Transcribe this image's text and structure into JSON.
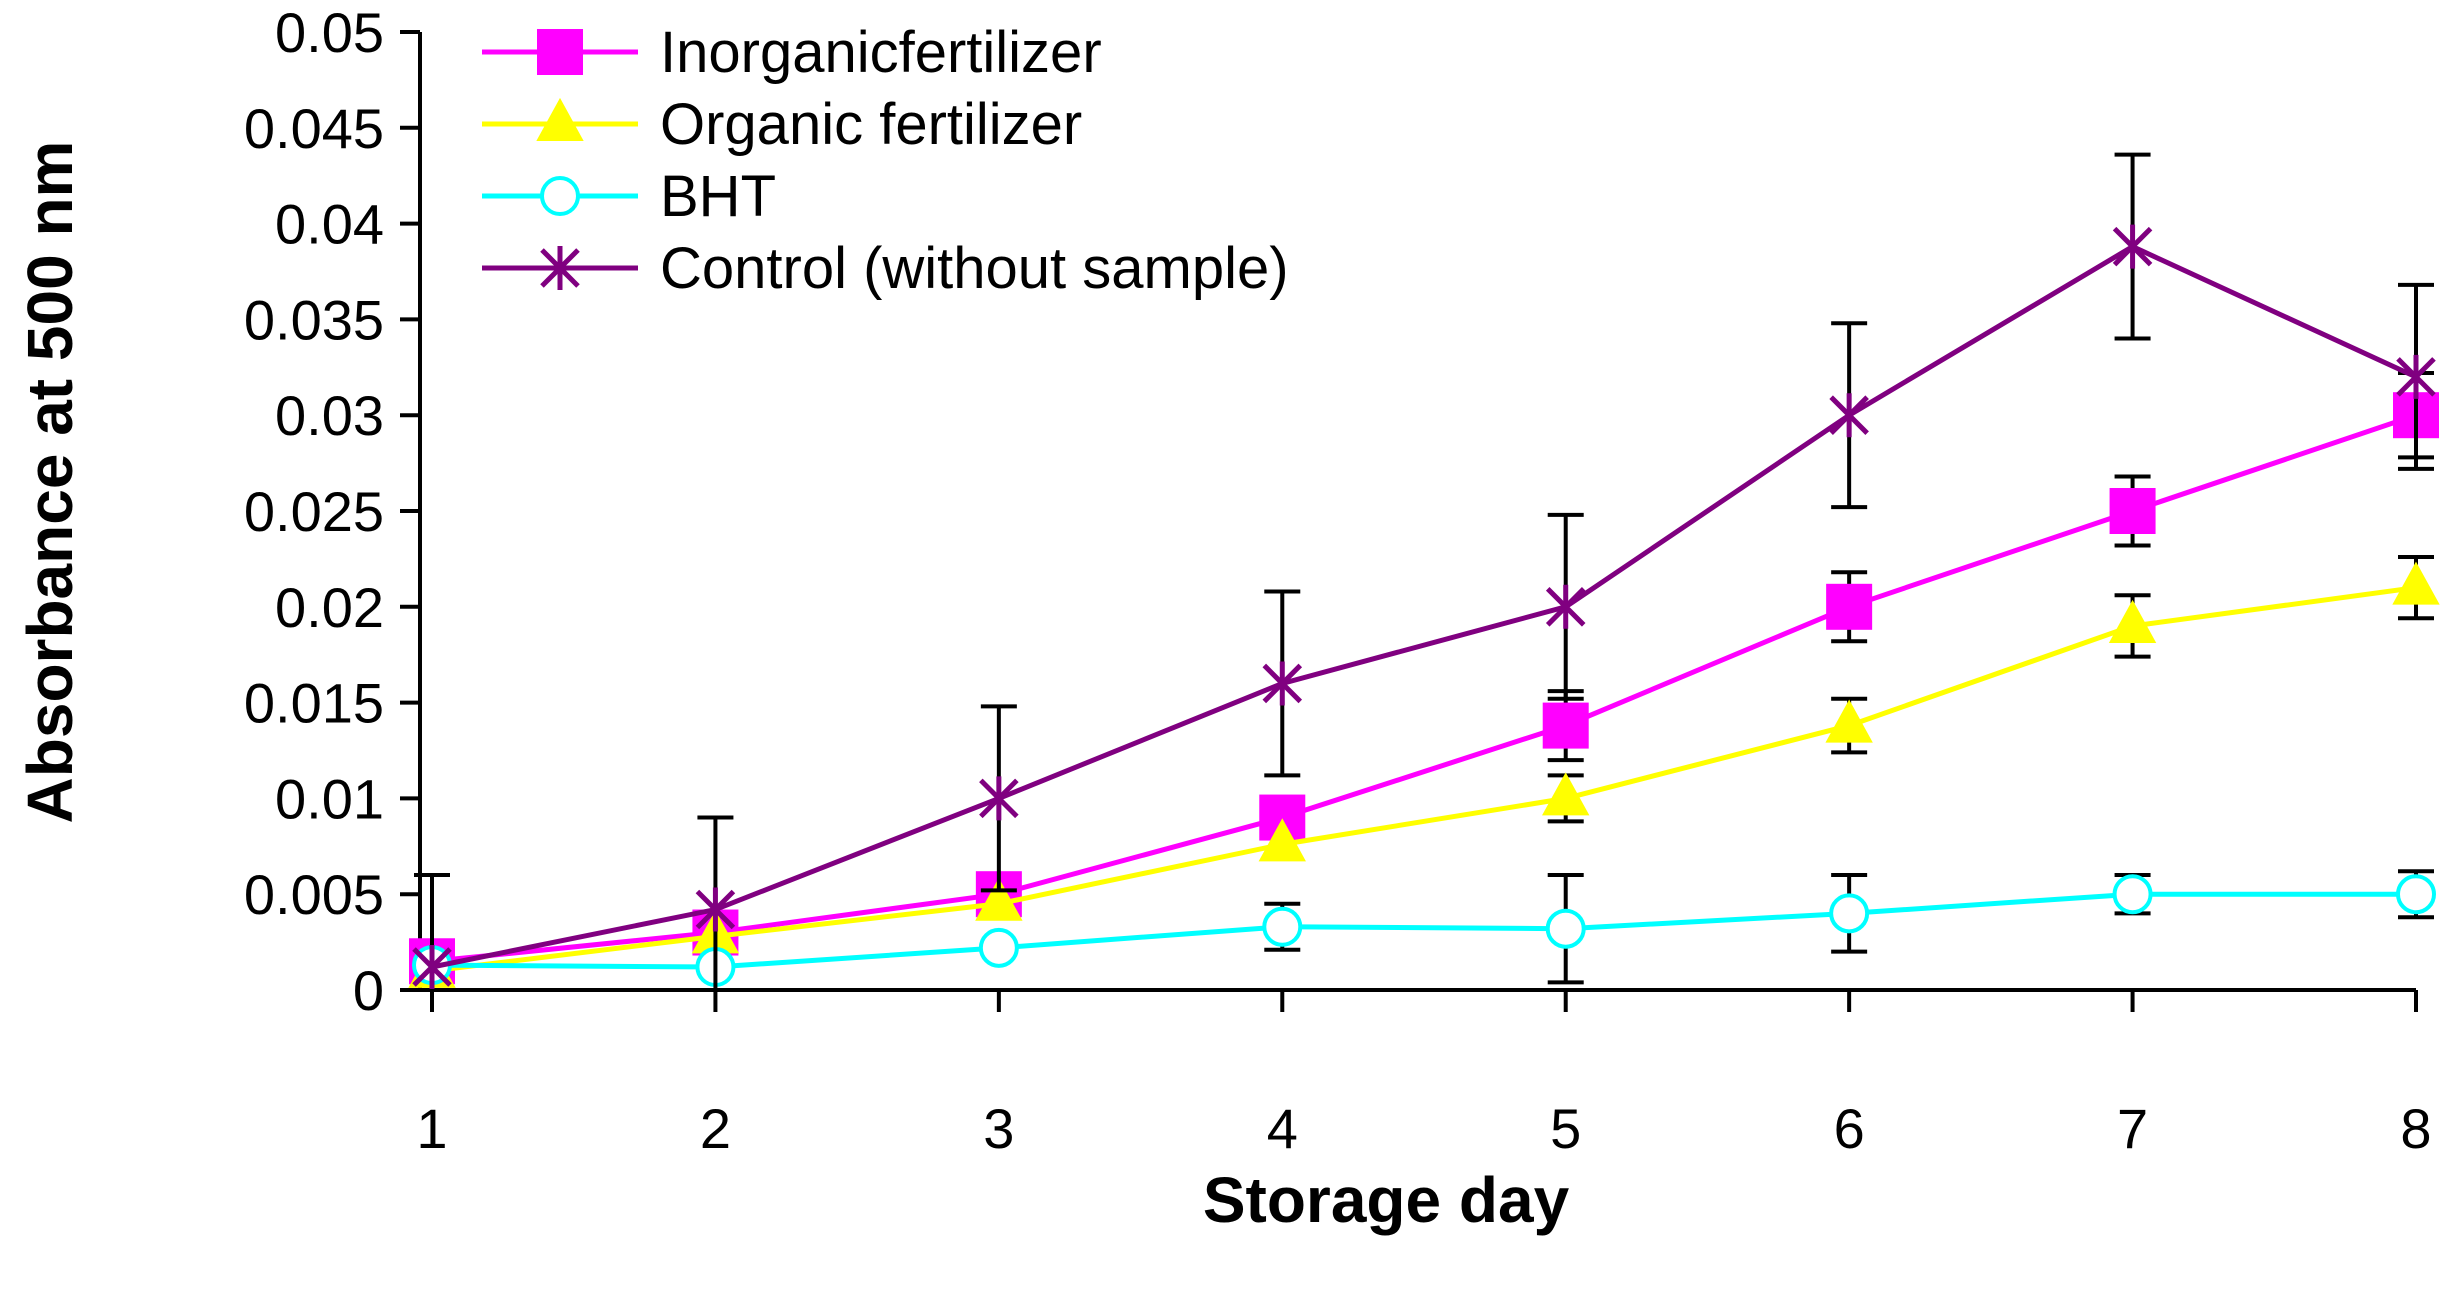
{
  "chart_data": {
    "type": "line",
    "title": "",
    "xlabel": "Storage day",
    "ylabel": "Absorbance  at 500 nm",
    "x": [
      1,
      2,
      3,
      4,
      5,
      6,
      7,
      8
    ],
    "x_tick_labels": [
      "1",
      "2",
      "3",
      "4",
      "5",
      "6",
      "7",
      "8"
    ],
    "ylim": [
      0,
      0.05
    ],
    "y_tick_labels": [
      "0",
      "0.005",
      "0.01",
      "0.015",
      "0.02",
      "0.025",
      "0.03",
      "0.035",
      "0.04",
      "0.045",
      "0.05"
    ],
    "y_ticks": [
      0,
      0.005,
      0.01,
      0.015,
      0.02,
      0.025,
      0.03,
      0.035,
      0.04,
      0.045,
      0.05
    ],
    "grid": false,
    "legend_position": "top-left",
    "series": [
      {
        "name": "Inorganic fertilizer",
        "legend_label": "Inorganicfertilizer",
        "color": "#FF00FF",
        "marker": "square",
        "values": [
          0.0015,
          0.003,
          0.005,
          0.009,
          0.0138,
          0.02,
          0.025,
          0.03
        ],
        "errors": [
          0.0045,
          0.0,
          0.0,
          0.0,
          0.0018,
          0.0018,
          0.0018,
          0.0022
        ]
      },
      {
        "name": "Organic fertilizer",
        "legend_label": "Organic fertilizer",
        "color": "#FFFF00",
        "marker": "triangle",
        "values": [
          0.001,
          0.0028,
          0.0045,
          0.0076,
          0.01,
          0.0138,
          0.019,
          0.021
        ],
        "errors": [
          0.0,
          0.0,
          0.0,
          0.0,
          0.0012,
          0.0014,
          0.0016,
          0.0016
        ]
      },
      {
        "name": "BHT",
        "legend_label": "BHT",
        "color": "#00FFFF",
        "marker": "circle",
        "values": [
          0.0013,
          0.0012,
          0.0022,
          0.0033,
          0.0032,
          0.004,
          0.005,
          0.005
        ],
        "errors": [
          0.0,
          0.0,
          0.0,
          0.0012,
          0.0028,
          0.002,
          0.001,
          0.0012
        ]
      },
      {
        "name": "Control (without sample)",
        "legend_label": "Control (without sample)",
        "color": "#800080",
        "marker": "asterisk",
        "values": [
          0.0012,
          0.0042,
          0.01,
          0.016,
          0.02,
          0.03,
          0.0388,
          0.032
        ],
        "errors": [
          0.0048,
          0.0048,
          0.0048,
          0.0048,
          0.0048,
          0.0048,
          0.0048,
          0.0048
        ]
      }
    ]
  }
}
